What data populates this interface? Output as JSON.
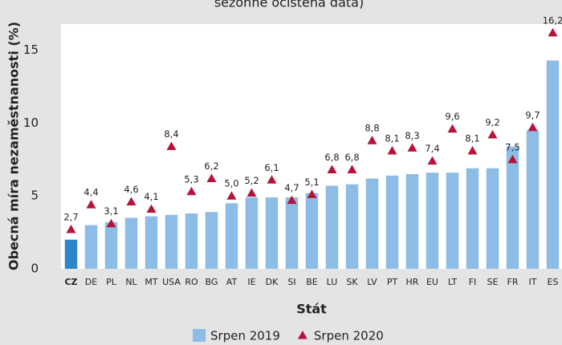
{
  "chart_data": {
    "type": "bar",
    "title": "sezónně očištěná data)",
    "x_label": "Stát",
    "y_label": "Obecná míra nezaměstnanosti (%)",
    "categories": [
      "CZ",
      "DE",
      "PL",
      "NL",
      "MT",
      "USA",
      "RO",
      "BG",
      "AT",
      "IE",
      "DK",
      "SI",
      "BE",
      "LU",
      "SK",
      "LV",
      "PT",
      "HR",
      "EU",
      "LT",
      "FI",
      "SE",
      "FR",
      "IT",
      "ES"
    ],
    "series": [
      {
        "name": "Srpen 2019",
        "type": "bar",
        "color": "#8dbde6",
        "highlight": {
          "index": 0,
          "color": "#2e86c8"
        },
        "values": [
          2.0,
          3.0,
          3.2,
          3.5,
          3.6,
          3.7,
          3.8,
          3.9,
          4.5,
          4.9,
          4.9,
          4.9,
          5.2,
          5.7,
          5.8,
          6.2,
          6.4,
          6.5,
          6.6,
          6.6,
          6.9,
          6.9,
          8.4,
          9.5,
          14.3
        ]
      },
      {
        "name": "Srpen 2020",
        "type": "marker",
        "color": "#b5133a",
        "values": [
          2.7,
          4.4,
          3.1,
          4.6,
          4.1,
          8.4,
          5.3,
          6.2,
          5.0,
          5.2,
          6.1,
          4.7,
          5.1,
          6.8,
          6.8,
          8.8,
          8.1,
          8.3,
          7.4,
          9.6,
          8.1,
          9.2,
          7.5,
          9.7,
          16.2
        ],
        "value_labels": [
          "2,7",
          "4,4",
          "3,1",
          "4,6",
          "4,1",
          "8,4",
          "5,3",
          "6,2",
          "5,0",
          "5,2",
          "6,1",
          "4,7",
          "5,1",
          "6,8",
          "6,8",
          "8,8",
          "8,1",
          "8,3",
          "7,4",
          "9,6",
          "8,1",
          "9,2",
          "7,5",
          "9,7",
          "16,2"
        ]
      }
    ],
    "ylim": [
      0,
      16.8
    ],
    "yticks": [
      0,
      5,
      10,
      15
    ],
    "grid": false,
    "legend": "bottom"
  }
}
